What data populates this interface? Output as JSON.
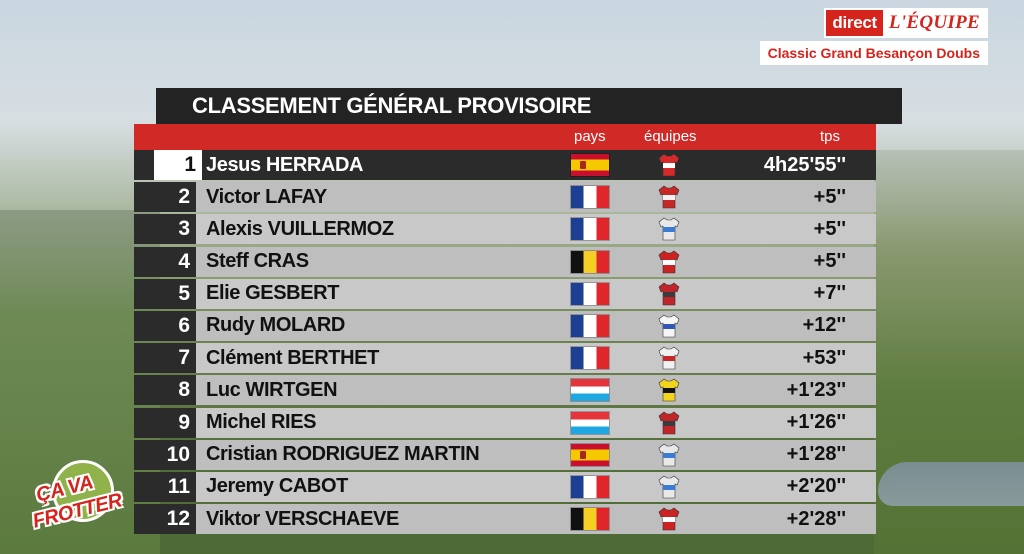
{
  "branding": {
    "direct_label": "direct",
    "equipe_label": "L'ÉQUIPE",
    "race_name": "Classic Grand Besançon Doubs",
    "show_logo_line1": "ÇA VA",
    "show_logo_line2": "FROTTER"
  },
  "standings": {
    "title": "CLASSEMENT GÉNÉRAL PROVISOIRE",
    "headers": {
      "country": "pays",
      "team": "équipes",
      "time": "tps"
    },
    "rows": [
      {
        "pos": "1",
        "name": "Jesus HERRADA",
        "flag": "spain-flag",
        "jersey": {
          "a": "#d42a2a",
          "b": "#ffffff"
        },
        "time": "4h25'55''"
      },
      {
        "pos": "2",
        "name": "Victor LAFAY",
        "flag": "france-flag",
        "jersey": {
          "a": "#c62828",
          "b": "#f2f2f2"
        },
        "time": "+5''"
      },
      {
        "pos": "3",
        "name": "Alexis VUILLERMOZ",
        "flag": "france-flag",
        "jersey": {
          "a": "#e8e8e8",
          "b": "#3a7bd5"
        },
        "time": "+5''"
      },
      {
        "pos": "4",
        "name": "Steff CRAS",
        "flag": "belgium-flag",
        "jersey": {
          "a": "#cc2222",
          "b": "#ffffff"
        },
        "time": "+5''"
      },
      {
        "pos": "5",
        "name": "Elie GESBERT",
        "flag": "france-flag",
        "jersey": {
          "a": "#c0252a",
          "b": "#3b3b3b"
        },
        "time": "+7''"
      },
      {
        "pos": "6",
        "name": "Rudy MOLARD",
        "flag": "france-flag",
        "jersey": {
          "a": "#f5f5f5",
          "b": "#2f58b8"
        },
        "time": "+12''"
      },
      {
        "pos": "7",
        "name": "Clément BERTHET",
        "flag": "france-flag",
        "jersey": {
          "a": "#f0f0f0",
          "b": "#c62828"
        },
        "time": "+53''"
      },
      {
        "pos": "8",
        "name": "Luc WIRTGEN",
        "flag": "luxembourg-flag",
        "jersey": {
          "a": "#f2d41c",
          "b": "#111111"
        },
        "time": "+1'23''"
      },
      {
        "pos": "9",
        "name": "Michel RIES",
        "flag": "luxembourg-flag",
        "jersey": {
          "a": "#c0252a",
          "b": "#3b3b3b"
        },
        "time": "+1'26''"
      },
      {
        "pos": "10",
        "name": "Cristian RODRIGUEZ MARTIN",
        "flag": "spain-flag",
        "jersey": {
          "a": "#e8e8e8",
          "b": "#3a7bd5"
        },
        "time": "+1'28''"
      },
      {
        "pos": "11",
        "name": "Jeremy CABOT",
        "flag": "france-flag",
        "jersey": {
          "a": "#e8e8e8",
          "b": "#3a7bd5"
        },
        "time": "+2'20''"
      },
      {
        "pos": "12",
        "name": "Viktor VERSCHAEVE",
        "flag": "belgium-flag",
        "jersey": {
          "a": "#cc2222",
          "b": "#ffffff"
        },
        "time": "+2'28''"
      }
    ]
  }
}
